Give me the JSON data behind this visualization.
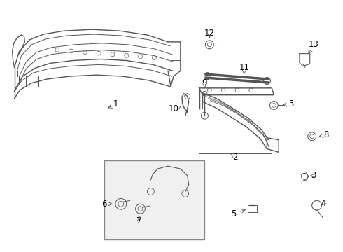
{
  "background_color": "#ffffff",
  "line_color": "#555555",
  "label_color": "#000000",
  "fig_width": 4.9,
  "fig_height": 3.6,
  "dpi": 100
}
